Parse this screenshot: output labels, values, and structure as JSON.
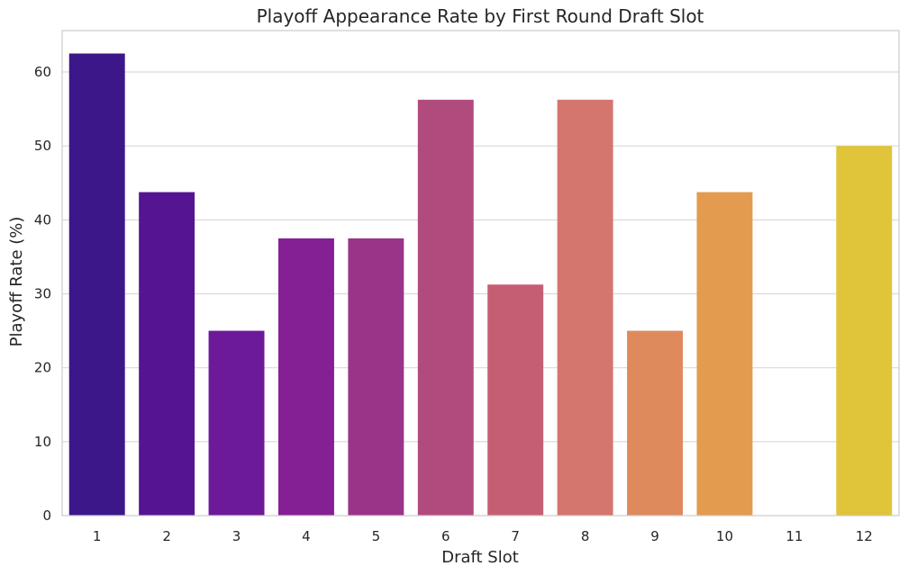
{
  "chart_data": {
    "type": "bar",
    "title": "Playoff Appearance Rate by First Round Draft Slot",
    "xlabel": "Draft Slot",
    "ylabel": "Playoff Rate (%)",
    "categories": [
      "1",
      "2",
      "3",
      "4",
      "5",
      "6",
      "7",
      "8",
      "9",
      "10",
      "11",
      "12"
    ],
    "values": [
      62.5,
      43.75,
      25.0,
      37.5,
      37.5,
      56.25,
      31.25,
      56.25,
      25.0,
      43.75,
      0,
      50.0
    ],
    "colors": [
      "#3c1789",
      "#551592",
      "#6d1a9a",
      "#851f94",
      "#993489",
      "#b14b7d",
      "#c65e73",
      "#d4756e",
      "#df8a5d",
      "#e39b4f",
      "#ecb943",
      "#e0c43a"
    ],
    "yticks": [
      0,
      10,
      20,
      30,
      40,
      50,
      60
    ],
    "ylim": [
      0,
      65.6
    ],
    "grid": true,
    "legend": "none"
  }
}
